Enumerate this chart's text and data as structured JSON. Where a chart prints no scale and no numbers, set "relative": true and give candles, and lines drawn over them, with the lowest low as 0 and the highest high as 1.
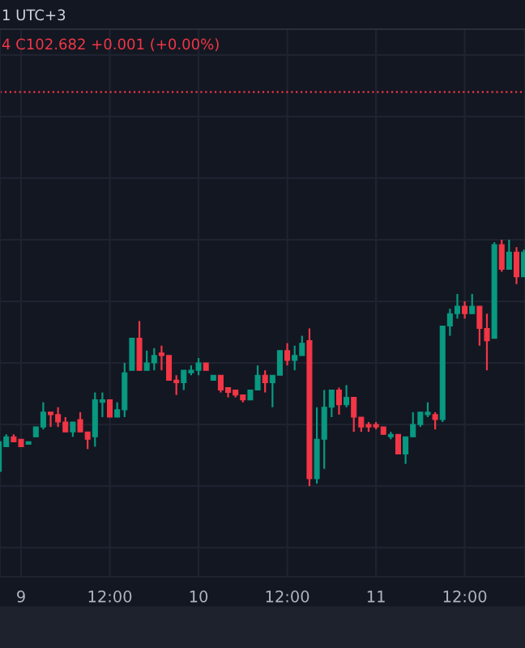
{
  "chart_data": {
    "type": "candlestick",
    "relative": true,
    "annotations": [
      "1 UTC+3",
      "4 C102.682 +0.001 (+0.00%)"
    ],
    "categories": [
      null,
      null,
      null,
      "9",
      null,
      null,
      null,
      null,
      null,
      null,
      null,
      null,
      null,
      null,
      null,
      "12:00",
      null,
      null,
      null,
      null,
      null,
      null,
      null,
      null,
      null,
      null,
      null,
      "10",
      null,
      null,
      null,
      null,
      null,
      null,
      null,
      null,
      null,
      null,
      null,
      "12:00",
      null,
      null,
      null,
      null,
      null,
      null,
      null,
      null,
      null,
      null,
      null,
      "11",
      null,
      null,
      null,
      null,
      null,
      null,
      null,
      null,
      null,
      null,
      null,
      "12:00",
      null,
      null,
      null,
      null,
      null,
      null,
      null,
      null
    ],
    "ohlc": [
      [
        0.06,
        0.18,
        0.05,
        0.18
      ],
      [
        0.16,
        0.21,
        0.16,
        0.2
      ],
      [
        0.2,
        0.21,
        0.18,
        0.18
      ],
      [
        0.19,
        0.19,
        0.16,
        0.16
      ],
      [
        0.17,
        0.18,
        0.17,
        0.18
      ],
      [
        0.2,
        0.24,
        0.2,
        0.24
      ],
      [
        0.24,
        0.34,
        0.23,
        0.3
      ],
      [
        0.3,
        0.3,
        0.24,
        0.29
      ],
      [
        0.29,
        0.32,
        0.24,
        0.26
      ],
      [
        0.26,
        0.28,
        0.22,
        0.22
      ],
      [
        0.22,
        0.26,
        0.2,
        0.26
      ],
      [
        0.27,
        0.3,
        0.22,
        0.22
      ],
      [
        0.22,
        0.22,
        0.15,
        0.19
      ],
      [
        0.2,
        0.38,
        0.16,
        0.35
      ],
      [
        0.34,
        0.38,
        0.28,
        0.35
      ],
      [
        0.35,
        0.35,
        0.28,
        0.28
      ],
      [
        0.28,
        0.34,
        0.28,
        0.31
      ],
      [
        0.31,
        0.5,
        0.28,
        0.46
      ],
      [
        0.47,
        0.6,
        0.47,
        0.6
      ],
      [
        0.6,
        0.67,
        0.47,
        0.47
      ],
      [
        0.47,
        0.55,
        0.47,
        0.5
      ],
      [
        0.5,
        0.56,
        0.47,
        0.53
      ],
      [
        0.54,
        0.57,
        0.47,
        0.53
      ],
      [
        0.53,
        0.53,
        0.43,
        0.43
      ],
      [
        0.43,
        0.45,
        0.37,
        0.42
      ],
      [
        0.42,
        0.47,
        0.39,
        0.47
      ],
      [
        0.46,
        0.49,
        0.45,
        0.47
      ],
      [
        0.47,
        0.52,
        0.45,
        0.5
      ],
      [
        0.5,
        0.5,
        0.47,
        0.47
      ],
      [
        0.43,
        0.45,
        0.43,
        0.45
      ],
      [
        0.45,
        0.45,
        0.38,
        0.39
      ],
      [
        0.4,
        0.4,
        0.36,
        0.38
      ],
      [
        0.39,
        0.39,
        0.36,
        0.37
      ],
      [
        0.37,
        0.37,
        0.34,
        0.35
      ],
      [
        0.35,
        0.39,
        0.35,
        0.39
      ],
      [
        0.39,
        0.49,
        0.39,
        0.45
      ],
      [
        0.45,
        0.47,
        0.38,
        0.42
      ],
      [
        0.42,
        0.45,
        0.32,
        0.45
      ],
      [
        0.45,
        0.55,
        0.45,
        0.55
      ],
      [
        0.55,
        0.58,
        0.49,
        0.51
      ],
      [
        0.51,
        0.57,
        0.47,
        0.53
      ],
      [
        0.53,
        0.61,
        0.53,
        0.58
      ],
      [
        0.59,
        0.64,
        0.0,
        0.03
      ],
      [
        0.03,
        0.32,
        0.01,
        0.19
      ],
      [
        0.19,
        0.39,
        0.07,
        0.32
      ],
      [
        0.32,
        0.39,
        0.28,
        0.39
      ],
      [
        0.39,
        0.4,
        0.29,
        0.33
      ],
      [
        0.33,
        0.41,
        0.32,
        0.36
      ],
      [
        0.36,
        0.36,
        0.22,
        0.28
      ],
      [
        0.28,
        0.28,
        0.22,
        0.24
      ],
      [
        0.25,
        0.26,
        0.22,
        0.24
      ],
      [
        0.25,
        0.26,
        0.23,
        0.24
      ],
      [
        0.24,
        0.24,
        0.21,
        0.21
      ],
      [
        0.2,
        0.22,
        0.19,
        0.21
      ],
      [
        0.21,
        0.21,
        0.13,
        0.13
      ],
      [
        0.13,
        0.2,
        0.09,
        0.2
      ],
      [
        0.2,
        0.3,
        0.2,
        0.25
      ],
      [
        0.25,
        0.3,
        0.24,
        0.3
      ],
      [
        0.29,
        0.34,
        0.28,
        0.3
      ],
      [
        0.29,
        0.3,
        0.23,
        0.27
      ],
      [
        0.27,
        0.65,
        0.26,
        0.65
      ],
      [
        0.65,
        0.72,
        0.61,
        0.7
      ],
      [
        0.7,
        0.78,
        0.68,
        0.73
      ],
      [
        0.73,
        0.75,
        0.68,
        0.7
      ],
      [
        0.7,
        0.78,
        0.7,
        0.73
      ],
      [
        0.73,
        0.73,
        0.57,
        0.64
      ],
      [
        0.64,
        0.7,
        0.47,
        0.59
      ],
      [
        0.6,
        0.99,
        0.6,
        0.98
      ],
      [
        0.98,
        1.0,
        0.87,
        0.88
      ],
      [
        0.88,
        1.0,
        0.88,
        0.95
      ],
      [
        0.95,
        0.97,
        0.82,
        0.85
      ],
      [
        0.85,
        0.96,
        0.85,
        0.95
      ]
    ],
    "colors": [
      "#089981",
      "#089981",
      "#f23645",
      "#f23645",
      "#089981",
      "#089981",
      "#089981",
      "#f23645",
      "#f23645",
      "#f23645",
      "#089981",
      "#f23645",
      "#f23645",
      "#089981",
      "#089981",
      "#f23645",
      "#089981",
      "#089981",
      "#089981",
      "#f23645",
      "#089981",
      "#089981",
      "#f23645",
      "#f23645",
      "#f23645",
      "#089981",
      "#089981",
      "#089981",
      "#f23645",
      "#089981",
      "#f23645",
      "#f23645",
      "#f23645",
      "#f23645",
      "#089981",
      "#089981",
      "#f23645",
      "#089981",
      "#089981",
      "#f23645",
      "#089981",
      "#089981",
      "#f23645",
      "#089981",
      "#089981",
      "#089981",
      "#f23645",
      "#089981",
      "#f23645",
      "#f23645",
      "#f23645",
      "#f23645",
      "#f23645",
      "#089981",
      "#f23645",
      "#089981",
      "#089981",
      "#089981",
      "#089981",
      "#f23645",
      "#089981",
      "#089981",
      "#089981",
      "#f23645",
      "#089981",
      "#f23645",
      "#f23645",
      "#089981",
      "#f23645",
      "#089981",
      "#f23645",
      "#089981"
    ],
    "ref_lines": [
      {
        "axis": "y",
        "value": 1.6,
        "label": null,
        "color": "#f23645",
        "line_style": "dotted"
      }
    ],
    "grid": true,
    "tick_labels": "x"
  }
}
